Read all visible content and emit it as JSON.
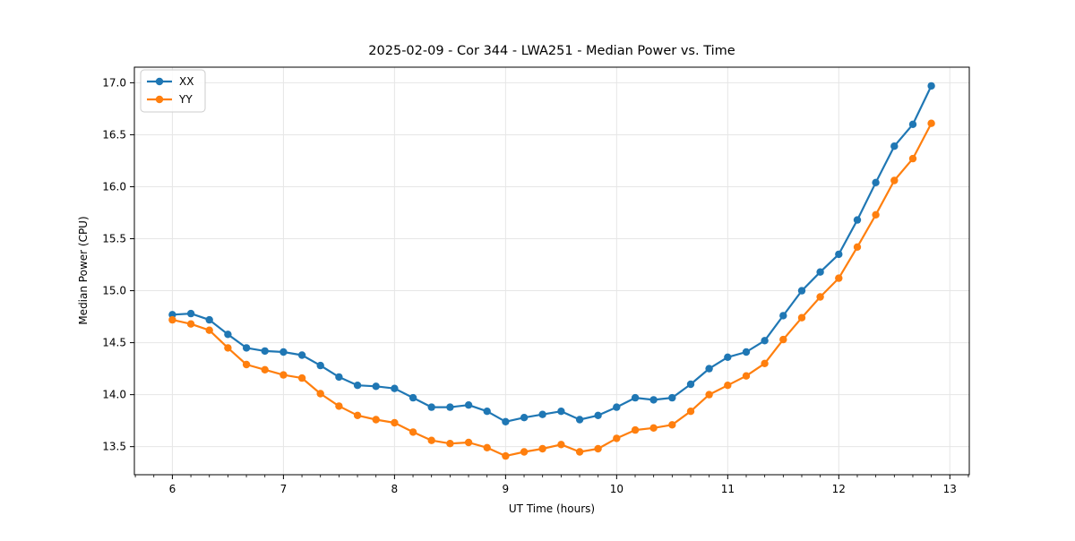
{
  "title": "2025-02-09 - Cor 344 - LWA251 - Median Power vs. Time",
  "colors": {
    "series_xx": "#1f77b4",
    "series_yy": "#ff7f0e",
    "grid": "#e6e6e6",
    "spine": "#000000",
    "legend_border": "#cccccc",
    "background": "#ffffff"
  },
  "legend": {
    "position": "upper left",
    "items": [
      {
        "label": "XX",
        "color": "#1f77b4"
      },
      {
        "label": "YY",
        "color": "#ff7f0e"
      }
    ]
  },
  "chart_data": {
    "type": "line",
    "title": "2025-02-09 - Cor 344 - LWA251 - Median Power vs. Time",
    "xlabel": "UT Time (hours)",
    "ylabel": "Median Power (CPU)",
    "xlim": [
      5.658,
      13.175
    ],
    "ylim": [
      13.23,
      17.15
    ],
    "x_ticks": [
      6,
      7,
      8,
      9,
      10,
      11,
      12,
      13
    ],
    "x_minor_tick_step": 0.1667,
    "y_ticks": [
      13.5,
      14.0,
      14.5,
      15.0,
      15.5,
      16.0,
      16.5,
      17.0
    ],
    "grid": true,
    "legend_position": "upper left",
    "marker": "circle",
    "x": [
      6,
      6.167,
      6.333,
      6.5,
      6.667,
      6.833,
      7,
      7.167,
      7.333,
      7.5,
      7.667,
      7.833,
      8,
      8.167,
      8.333,
      8.5,
      8.667,
      8.833,
      9,
      9.167,
      9.333,
      9.5,
      9.667,
      9.833,
      10,
      10.167,
      10.333,
      10.5,
      10.667,
      10.833,
      11,
      11.167,
      11.333,
      11.5,
      11.667,
      11.833,
      12,
      12.167,
      12.333,
      12.5,
      12.667,
      12.833
    ],
    "series": [
      {
        "name": "XX",
        "color": "#1f77b4",
        "values": [
          14.77,
          14.78,
          14.72,
          14.58,
          14.45,
          14.42,
          14.41,
          14.38,
          14.28,
          14.17,
          14.09,
          14.08,
          14.06,
          13.97,
          13.88,
          13.88,
          13.9,
          13.84,
          13.74,
          13.78,
          13.81,
          13.84,
          13.76,
          13.8,
          13.88,
          13.97,
          13.95,
          13.97,
          14.1,
          14.25,
          14.36,
          14.41,
          14.52,
          14.76,
          15.0,
          15.18,
          15.35,
          15.68,
          16.04,
          16.39,
          16.6,
          16.97
        ]
      },
      {
        "name": "YY",
        "color": "#ff7f0e",
        "values": [
          14.72,
          14.68,
          14.62,
          14.45,
          14.29,
          14.24,
          14.19,
          14.16,
          14.01,
          13.89,
          13.8,
          13.76,
          13.73,
          13.64,
          13.56,
          13.53,
          13.54,
          13.49,
          13.41,
          13.45,
          13.48,
          13.52,
          13.45,
          13.48,
          13.58,
          13.66,
          13.68,
          13.71,
          13.84,
          14.0,
          14.09,
          14.18,
          14.3,
          14.53,
          14.74,
          14.94,
          15.12,
          15.42,
          15.73,
          16.06,
          16.27,
          16.61
        ]
      }
    ]
  }
}
